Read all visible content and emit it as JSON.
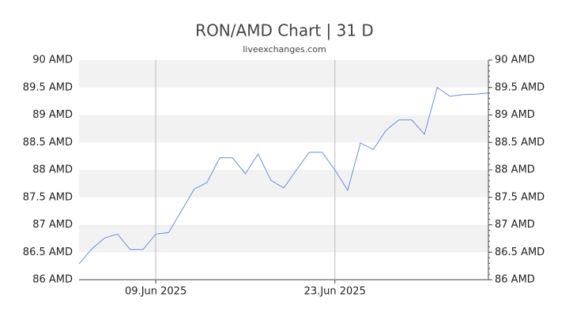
{
  "chart_data": {
    "type": "line",
    "title": "RON/AMD Chart | 31 D",
    "subtitle": "liveexchanges.com",
    "categories": [
      null,
      null,
      null,
      null,
      null,
      null,
      "09.Jun 2025",
      null,
      null,
      null,
      null,
      null,
      null,
      null,
      null,
      null,
      null,
      null,
      null,
      null,
      "23.Jun 2025",
      null,
      null,
      null,
      null,
      null,
      null,
      null,
      null,
      null,
      null,
      null,
      null
    ],
    "series": [
      {
        "name": "RON/AMD",
        "color": "#6a8ed8",
        "values": [
          86.29,
          86.56,
          86.76,
          86.83,
          86.55,
          86.55,
          86.83,
          86.86,
          87.25,
          87.65,
          87.77,
          88.22,
          88.22,
          87.93,
          88.29,
          87.81,
          87.67,
          88.0,
          88.32,
          88.32,
          88.0,
          87.63,
          88.49,
          88.37,
          88.72,
          88.91,
          88.91,
          88.65,
          89.5,
          89.34,
          89.37,
          89.38,
          89.4
        ]
      }
    ],
    "ylim": [
      86,
      90
    ],
    "yticks": [
      {
        "value": 86,
        "label": "86 AMD"
      },
      {
        "value": 86.5,
        "label": "86.5 AMD"
      },
      {
        "value": 87,
        "label": "87 AMD"
      },
      {
        "value": 87.5,
        "label": "87.5 AMD"
      },
      {
        "value": 88,
        "label": "88 AMD"
      },
      {
        "value": 88.5,
        "label": "88.5 AMD"
      },
      {
        "value": 89,
        "label": "89 AMD"
      },
      {
        "value": 89.5,
        "label": "89.5 AMD"
      },
      {
        "value": 90,
        "label": "90 AMD"
      }
    ],
    "bands": true,
    "band_color": "#f2f2f2",
    "right_axis": true
  }
}
